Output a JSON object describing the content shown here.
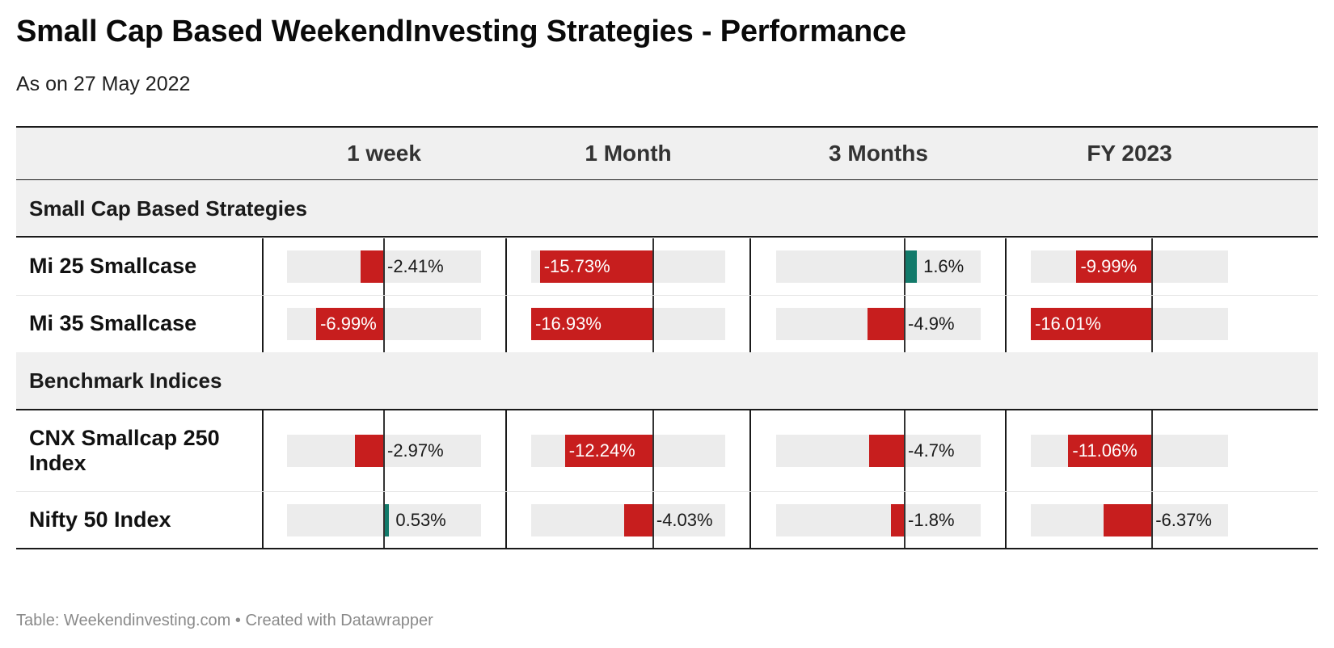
{
  "title": "Small Cap Based WeekendInvesting Strategies - Performance",
  "subtitle": "As on 27 May 2022",
  "footer": "Table: Weekendinvesting.com • Created with Datawrapper",
  "colors": {
    "negative": "#c71e1e",
    "positive": "#127a6a",
    "track": "#ececec"
  },
  "chart_data": {
    "type": "table",
    "columns": [
      "1 week",
      "1 Month",
      "3 Months",
      "FY 2023"
    ],
    "groups": [
      {
        "label": "Small Cap Based Strategies",
        "rows": [
          {
            "name": "Mi 25 Smallcase",
            "values": [
              -2.41,
              -15.73,
              1.6,
              -9.99
            ],
            "labels": [
              "-2.41%",
              "-15.73%",
              "1.6%",
              "-9.99%"
            ]
          },
          {
            "name": "Mi 35 Smallcase",
            "values": [
              -6.99,
              -16.93,
              -4.9,
              -16.01
            ],
            "labels": [
              "-6.99%",
              "-16.93%",
              "-4.9%",
              "-16.01%"
            ]
          }
        ]
      },
      {
        "label": "Benchmark Indices",
        "rows": [
          {
            "name": "CNX Smallcap 250 Index",
            "values": [
              -2.97,
              -12.24,
              -4.7,
              -11.06
            ],
            "labels": [
              "-2.97%",
              "-12.24%",
              "-4.7%",
              "-11.06%"
            ]
          },
          {
            "name": "Nifty 50 Index",
            "values": [
              0.53,
              -4.03,
              -1.8,
              -6.37
            ],
            "labels": [
              "0.53%",
              "-4.03%",
              "-1.8%",
              "-6.37%"
            ]
          }
        ]
      }
    ],
    "column_ranges": [
      [
        -10,
        10
      ],
      [
        -16.93,
        10
      ],
      [
        -16.93,
        10
      ],
      [
        -16.01,
        10
      ]
    ]
  }
}
